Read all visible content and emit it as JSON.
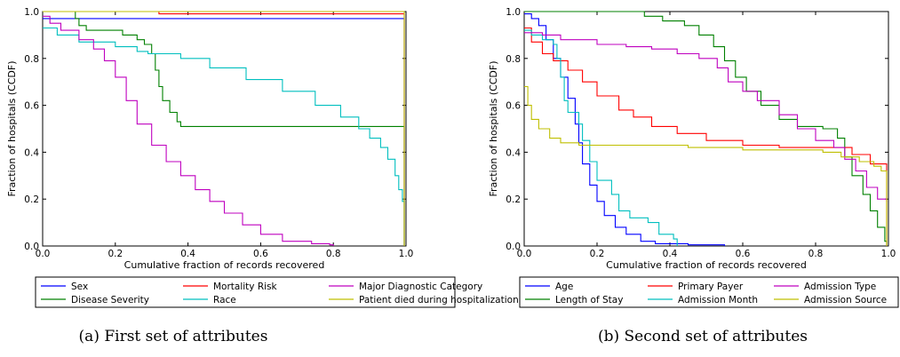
{
  "chart_data": [
    {
      "type": "line",
      "step": true,
      "caption": "(a) First set of attributes",
      "xlabel": "Cumulative fraction of records recovered",
      "ylabel": "Fraction of hospitals (CCDF)",
      "xlim": [
        0.0,
        1.0
      ],
      "ylim": [
        0.0,
        1.0
      ],
      "xticks": [
        "0.0",
        "0.2",
        "0.4",
        "0.6",
        "0.8",
        "1.0"
      ],
      "yticks": [
        "0.0",
        "0.2",
        "0.4",
        "0.6",
        "0.8",
        "1.0"
      ],
      "grid": false,
      "legend_position": "below-plot",
      "legend_columns": 3,
      "series": [
        {
          "name": "Sex",
          "color": "#0000ff",
          "points": [
            [
              0.0,
              0.97
            ],
            [
              0.995,
              0.97
            ],
            [
              0.995,
              0.0
            ]
          ]
        },
        {
          "name": "Disease Severity",
          "color": "#008000",
          "points": [
            [
              0.0,
              1.0
            ],
            [
              0.08,
              1.0
            ],
            [
              0.09,
              0.97
            ],
            [
              0.1,
              0.94
            ],
            [
              0.12,
              0.92
            ],
            [
              0.2,
              0.92
            ],
            [
              0.22,
              0.9
            ],
            [
              0.26,
              0.88
            ],
            [
              0.28,
              0.86
            ],
            [
              0.3,
              0.82
            ],
            [
              0.31,
              0.75
            ],
            [
              0.32,
              0.68
            ],
            [
              0.33,
              0.62
            ],
            [
              0.35,
              0.57
            ],
            [
              0.37,
              0.53
            ],
            [
              0.38,
              0.51
            ],
            [
              0.995,
              0.51
            ],
            [
              0.995,
              0.0
            ]
          ]
        },
        {
          "name": "Mortality Risk",
          "color": "#ff0000",
          "points": [
            [
              0.0,
              1.0
            ],
            [
              0.3,
              1.0
            ],
            [
              0.32,
              0.99
            ],
            [
              0.995,
              0.99
            ],
            [
              0.995,
              0.0
            ]
          ]
        },
        {
          "name": "Race",
          "color": "#00bfbf",
          "points": [
            [
              0.0,
              0.93
            ],
            [
              0.04,
              0.9
            ],
            [
              0.1,
              0.87
            ],
            [
              0.2,
              0.85
            ],
            [
              0.26,
              0.83
            ],
            [
              0.29,
              0.82
            ],
            [
              0.38,
              0.8
            ],
            [
              0.46,
              0.76
            ],
            [
              0.56,
              0.71
            ],
            [
              0.66,
              0.66
            ],
            [
              0.75,
              0.6
            ],
            [
              0.82,
              0.55
            ],
            [
              0.87,
              0.5
            ],
            [
              0.9,
              0.46
            ],
            [
              0.93,
              0.42
            ],
            [
              0.95,
              0.37
            ],
            [
              0.97,
              0.3
            ],
            [
              0.98,
              0.24
            ],
            [
              0.99,
              0.19
            ],
            [
              0.995,
              0.17
            ],
            [
              0.995,
              0.0
            ]
          ]
        },
        {
          "name": "Major Diagnostic Category",
          "color": "#bf00bf",
          "points": [
            [
              0.0,
              0.98
            ],
            [
              0.02,
              0.95
            ],
            [
              0.05,
              0.92
            ],
            [
              0.1,
              0.88
            ],
            [
              0.14,
              0.84
            ],
            [
              0.17,
              0.79
            ],
            [
              0.2,
              0.72
            ],
            [
              0.23,
              0.62
            ],
            [
              0.26,
              0.52
            ],
            [
              0.3,
              0.43
            ],
            [
              0.34,
              0.36
            ],
            [
              0.38,
              0.3
            ],
            [
              0.42,
              0.24
            ],
            [
              0.46,
              0.19
            ],
            [
              0.5,
              0.14
            ],
            [
              0.55,
              0.09
            ],
            [
              0.6,
              0.05
            ],
            [
              0.66,
              0.02
            ],
            [
              0.74,
              0.01
            ],
            [
              0.79,
              0.005
            ],
            [
              0.8,
              0.0
            ]
          ]
        },
        {
          "name": "Patient died during hospitalization",
          "color": "#bfbf00",
          "points": [
            [
              0.0,
              1.0
            ],
            [
              0.995,
              1.0
            ],
            [
              0.995,
              0.0
            ]
          ]
        }
      ]
    },
    {
      "type": "line",
      "step": true,
      "caption": "(b) Second set of attributes",
      "xlabel": "Cumulative fraction of records recovered",
      "ylabel": "Fraction of hospitals (CCDF)",
      "xlim": [
        0.0,
        1.0
      ],
      "ylim": [
        0.0,
        1.0
      ],
      "xticks": [
        "0.0",
        "0.2",
        "0.4",
        "0.6",
        "0.8",
        "1.0"
      ],
      "yticks": [
        "0.0",
        "0.2",
        "0.4",
        "0.6",
        "0.8",
        "1.0"
      ],
      "grid": false,
      "legend_position": "below-plot",
      "legend_columns": 3,
      "series": [
        {
          "name": "Age",
          "color": "#0000ff",
          "points": [
            [
              0.0,
              0.99
            ],
            [
              0.02,
              0.97
            ],
            [
              0.04,
              0.94
            ],
            [
              0.06,
              0.88
            ],
            [
              0.08,
              0.8
            ],
            [
              0.1,
              0.72
            ],
            [
              0.12,
              0.63
            ],
            [
              0.14,
              0.52
            ],
            [
              0.15,
              0.44
            ],
            [
              0.16,
              0.35
            ],
            [
              0.18,
              0.26
            ],
            [
              0.2,
              0.19
            ],
            [
              0.22,
              0.13
            ],
            [
              0.25,
              0.08
            ],
            [
              0.28,
              0.05
            ],
            [
              0.32,
              0.02
            ],
            [
              0.36,
              0.01
            ],
            [
              0.45,
              0.005
            ],
            [
              0.55,
              0.0
            ]
          ]
        },
        {
          "name": "Length of Stay",
          "color": "#008000",
          "points": [
            [
              0.0,
              1.0
            ],
            [
              0.28,
              1.0
            ],
            [
              0.33,
              0.98
            ],
            [
              0.38,
              0.96
            ],
            [
              0.44,
              0.94
            ],
            [
              0.48,
              0.9
            ],
            [
              0.52,
              0.85
            ],
            [
              0.55,
              0.79
            ],
            [
              0.58,
              0.72
            ],
            [
              0.61,
              0.66
            ],
            [
              0.65,
              0.6
            ],
            [
              0.7,
              0.54
            ],
            [
              0.75,
              0.51
            ],
            [
              0.82,
              0.5
            ],
            [
              0.86,
              0.46
            ],
            [
              0.88,
              0.38
            ],
            [
              0.9,
              0.3
            ],
            [
              0.93,
              0.22
            ],
            [
              0.95,
              0.15
            ],
            [
              0.97,
              0.08
            ],
            [
              0.99,
              0.02
            ],
            [
              0.995,
              0.0
            ]
          ]
        },
        {
          "name": "Primary Payer",
          "color": "#ff0000",
          "points": [
            [
              0.0,
              0.93
            ],
            [
              0.02,
              0.87
            ],
            [
              0.05,
              0.82
            ],
            [
              0.08,
              0.79
            ],
            [
              0.12,
              0.75
            ],
            [
              0.16,
              0.7
            ],
            [
              0.2,
              0.64
            ],
            [
              0.26,
              0.58
            ],
            [
              0.3,
              0.55
            ],
            [
              0.35,
              0.51
            ],
            [
              0.42,
              0.48
            ],
            [
              0.5,
              0.45
            ],
            [
              0.6,
              0.43
            ],
            [
              0.7,
              0.42
            ],
            [
              0.85,
              0.42
            ],
            [
              0.9,
              0.39
            ],
            [
              0.95,
              0.35
            ],
            [
              0.995,
              0.3
            ],
            [
              0.995,
              0.0
            ]
          ]
        },
        {
          "name": "Admission Month",
          "color": "#00bfbf",
          "points": [
            [
              0.0,
              0.92
            ],
            [
              0.02,
              0.9
            ],
            [
              0.05,
              0.88
            ],
            [
              0.08,
              0.86
            ],
            [
              0.09,
              0.8
            ],
            [
              0.1,
              0.72
            ],
            [
              0.11,
              0.62
            ],
            [
              0.12,
              0.57
            ],
            [
              0.15,
              0.52
            ],
            [
              0.16,
              0.45
            ],
            [
              0.18,
              0.36
            ],
            [
              0.2,
              0.28
            ],
            [
              0.24,
              0.22
            ],
            [
              0.26,
              0.15
            ],
            [
              0.29,
              0.12
            ],
            [
              0.34,
              0.1
            ],
            [
              0.37,
              0.05
            ],
            [
              0.41,
              0.03
            ],
            [
              0.42,
              0.0
            ]
          ]
        },
        {
          "name": "Admission Type",
          "color": "#bf00bf",
          "points": [
            [
              0.0,
              0.91
            ],
            [
              0.05,
              0.9
            ],
            [
              0.1,
              0.88
            ],
            [
              0.2,
              0.86
            ],
            [
              0.28,
              0.85
            ],
            [
              0.35,
              0.84
            ],
            [
              0.42,
              0.82
            ],
            [
              0.48,
              0.8
            ],
            [
              0.53,
              0.76
            ],
            [
              0.56,
              0.7
            ],
            [
              0.6,
              0.66
            ],
            [
              0.64,
              0.62
            ],
            [
              0.7,
              0.56
            ],
            [
              0.75,
              0.5
            ],
            [
              0.8,
              0.45
            ],
            [
              0.85,
              0.42
            ],
            [
              0.88,
              0.37
            ],
            [
              0.91,
              0.32
            ],
            [
              0.94,
              0.25
            ],
            [
              0.97,
              0.2
            ],
            [
              0.995,
              0.19
            ]
          ]
        },
        {
          "name": "Admission Source",
          "color": "#bfbf00",
          "points": [
            [
              0.0,
              0.68
            ],
            [
              0.01,
              0.6
            ],
            [
              0.02,
              0.54
            ],
            [
              0.04,
              0.5
            ],
            [
              0.07,
              0.46
            ],
            [
              0.1,
              0.44
            ],
            [
              0.15,
              0.43
            ],
            [
              0.3,
              0.43
            ],
            [
              0.45,
              0.42
            ],
            [
              0.6,
              0.41
            ],
            [
              0.75,
              0.41
            ],
            [
              0.82,
              0.4
            ],
            [
              0.87,
              0.38
            ],
            [
              0.92,
              0.36
            ],
            [
              0.96,
              0.34
            ],
            [
              0.98,
              0.32
            ],
            [
              0.995,
              0.26
            ],
            [
              0.995,
              0.0
            ]
          ]
        }
      ]
    }
  ]
}
